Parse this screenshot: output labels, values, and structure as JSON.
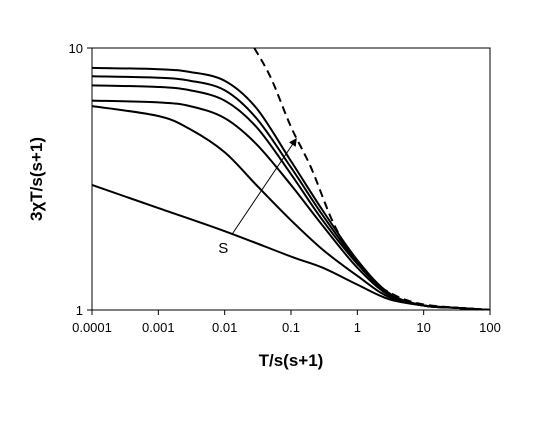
{
  "chart_data": {
    "type": "line",
    "xscale": "log",
    "yscale": "log",
    "xlabel": "T/s(s+1)",
    "ylabel": "3χT/s(s+1)",
    "xlim": [
      0.0001,
      100
    ],
    "ylim": [
      1,
      10
    ],
    "x_ticks": [
      "0.0001",
      "0.001",
      "0.01",
      "0.1",
      "1",
      "10",
      "100"
    ],
    "y_ticks": [
      "1",
      "10"
    ],
    "grid": false,
    "legend": "none",
    "line_color": "#000000",
    "series": [
      {
        "style": "solid",
        "x": [
          0.0001,
          0.001,
          0.01,
          0.1,
          0.3,
          1,
          3,
          10,
          30,
          100
        ],
        "y": [
          3.0,
          2.45,
          2.0,
          1.6,
          1.45,
          1.25,
          1.1,
          1.04,
          1.02,
          1.0
        ]
      },
      {
        "style": "solid",
        "x": [
          0.0001,
          0.001,
          0.003,
          0.01,
          0.03,
          0.1,
          0.3,
          1,
          3,
          10,
          30,
          100
        ],
        "y": [
          6.0,
          5.5,
          4.9,
          4.0,
          3.0,
          2.2,
          1.7,
          1.35,
          1.12,
          1.04,
          1.02,
          1.0
        ]
      },
      {
        "style": "solid",
        "x": [
          0.0001,
          0.001,
          0.003,
          0.01,
          0.03,
          0.1,
          0.3,
          1,
          3,
          10,
          30,
          100
        ],
        "y": [
          6.3,
          6.2,
          6.0,
          5.4,
          4.3,
          3.0,
          2.1,
          1.45,
          1.14,
          1.04,
          1.02,
          1.0
        ]
      },
      {
        "style": "solid",
        "x": [
          0.0001,
          0.001,
          0.003,
          0.01,
          0.03,
          0.1,
          0.3,
          1,
          3,
          10,
          30,
          100
        ],
        "y": [
          7.2,
          7.1,
          6.9,
          6.3,
          5.0,
          3.3,
          2.2,
          1.5,
          1.15,
          1.04,
          1.02,
          1.0
        ]
      },
      {
        "style": "solid",
        "x": [
          0.0001,
          0.001,
          0.003,
          0.01,
          0.03,
          0.1,
          0.3,
          1,
          3,
          10,
          30,
          100
        ],
        "y": [
          7.8,
          7.7,
          7.5,
          6.9,
          5.4,
          3.5,
          2.3,
          1.52,
          1.15,
          1.04,
          1.02,
          1.0
        ]
      },
      {
        "style": "solid",
        "x": [
          0.0001,
          0.001,
          0.003,
          0.01,
          0.03,
          0.1,
          0.3,
          1,
          3,
          10,
          30,
          100
        ],
        "y": [
          8.4,
          8.3,
          8.1,
          7.5,
          5.9,
          3.7,
          2.4,
          1.55,
          1.16,
          1.04,
          1.02,
          1.0
        ]
      },
      {
        "style": "dashed",
        "x": [
          0.028,
          0.05,
          0.1,
          0.2,
          0.4,
          0.7,
          1,
          2,
          3,
          5,
          10,
          30,
          100
        ],
        "y": [
          10.0,
          7.67,
          5.0,
          3.5,
          2.25,
          1.71,
          1.5,
          1.25,
          1.17,
          1.1,
          1.05,
          1.02,
          1.0
        ]
      }
    ],
    "annotations": [
      {
        "text": "S",
        "type": "arrow",
        "from": [
          0.013,
          1.95
        ],
        "to": [
          0.12,
          4.5
        ]
      }
    ]
  }
}
